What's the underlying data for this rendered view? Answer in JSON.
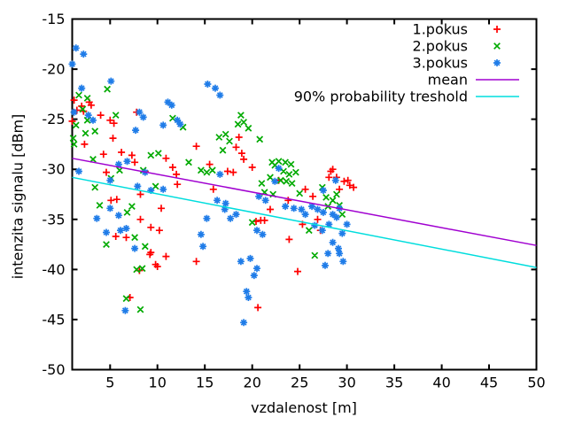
{
  "chart_data": {
    "type": "scatter",
    "title": "",
    "xlabel": "vzdalenost [m]",
    "ylabel": "intenzita signalu [dBm]",
    "xlim": [
      1,
      50
    ],
    "ylim": [
      -50,
      -15
    ],
    "x_ticks": [
      5,
      10,
      15,
      20,
      25,
      30,
      35,
      40,
      45,
      50
    ],
    "y_ticks": [
      -50,
      -45,
      -40,
      -35,
      -30,
      -25,
      -20,
      -15
    ],
    "grid": false,
    "legend_position": "top-right-inside",
    "background": "#ffffff",
    "border_color": "#000000",
    "series": [
      {
        "name": "1.pokus",
        "kind": "points",
        "marker": "plus",
        "color": "#ff0000",
        "points": [
          [
            1.0,
            -25.2
          ],
          [
            1.2,
            -23.1
          ],
          [
            1.5,
            -24.1
          ],
          [
            2.0,
            -23.7
          ],
          [
            2.2,
            -24.2
          ],
          [
            2.8,
            -23.3
          ],
          [
            3.0,
            -23.6
          ],
          [
            4.0,
            -24.6
          ],
          [
            5.0,
            -25.1
          ],
          [
            5.4,
            -25.4
          ],
          [
            7.8,
            -24.3
          ],
          [
            2.3,
            -27.5
          ],
          [
            4.3,
            -28.5
          ],
          [
            5.3,
            -26.9
          ],
          [
            6.2,
            -28.3
          ],
          [
            7.3,
            -28.6
          ],
          [
            7.6,
            -29.3
          ],
          [
            8.7,
            -30.2
          ],
          [
            10.9,
            -28.9
          ],
          [
            11.6,
            -29.8
          ],
          [
            12.0,
            -30.5
          ],
          [
            12.1,
            -31.5
          ],
          [
            14.1,
            -27.7
          ],
          [
            15.5,
            -29.5
          ],
          [
            15.9,
            -32.0
          ],
          [
            4.6,
            -30.3
          ],
          [
            5.1,
            -33.1
          ],
          [
            5.7,
            -33.0
          ],
          [
            8.2,
            -32.5
          ],
          [
            10.4,
            -33.9
          ],
          [
            8.2,
            -35.0
          ],
          [
            9.3,
            -35.8
          ],
          [
            10.2,
            -36.1
          ],
          [
            5.6,
            -36.7
          ],
          [
            6.7,
            -36.8
          ],
          [
            9.3,
            -38.3
          ],
          [
            17.4,
            -30.2
          ],
          [
            18.0,
            -30.3
          ],
          [
            18.3,
            -27.8
          ],
          [
            18.6,
            -26.8
          ],
          [
            18.9,
            -28.4
          ],
          [
            19.1,
            -29.0
          ],
          [
            20.0,
            -29.8
          ],
          [
            20.4,
            -35.2
          ],
          [
            20.9,
            -35.1
          ],
          [
            21.3,
            -35.1
          ],
          [
            21.9,
            -34.0
          ],
          [
            22.8,
            -31.1
          ],
          [
            23.8,
            -33.1
          ],
          [
            23.9,
            -37.0
          ],
          [
            24.8,
            -40.2
          ],
          [
            25.3,
            -35.5
          ],
          [
            25.6,
            -32.0
          ],
          [
            26.4,
            -32.7
          ],
          [
            26.9,
            -35.0
          ],
          [
            27.2,
            -36.1
          ],
          [
            28.1,
            -30.8
          ],
          [
            28.3,
            -30.2
          ],
          [
            28.5,
            -30.0
          ],
          [
            28.9,
            -30.8
          ],
          [
            29.2,
            -32.0
          ],
          [
            29.7,
            -31.2
          ],
          [
            30.1,
            -31.1
          ],
          [
            30.3,
            -31.6
          ],
          [
            30.7,
            -31.8
          ],
          [
            9.2,
            -38.5
          ],
          [
            10.9,
            -38.7
          ],
          [
            9.8,
            -39.5
          ],
          [
            10.0,
            -39.7
          ],
          [
            14.1,
            -39.2
          ],
          [
            8.1,
            -40.1
          ],
          [
            7.1,
            -42.8
          ],
          [
            20.6,
            -43.8
          ]
        ]
      },
      {
        "name": "2.pokus",
        "kind": "points",
        "marker": "cross",
        "color": "#00aa00",
        "points": [
          [
            1.1,
            -26.9
          ],
          [
            1.2,
            -27.5
          ],
          [
            1.4,
            -25.6
          ],
          [
            1.7,
            -22.6
          ],
          [
            2.1,
            -24.0
          ],
          [
            2.4,
            -26.4
          ],
          [
            2.6,
            -22.9
          ],
          [
            2.6,
            -25.1
          ],
          [
            3.2,
            -29.0
          ],
          [
            3.4,
            -26.2
          ],
          [
            4.7,
            -22.0
          ],
          [
            5.6,
            -24.6
          ],
          [
            3.4,
            -31.8
          ],
          [
            3.9,
            -33.6
          ],
          [
            5.1,
            -30.9
          ],
          [
            6.0,
            -30.1
          ],
          [
            6.8,
            -34.3
          ],
          [
            7.3,
            -33.7
          ],
          [
            8.5,
            -30.1
          ],
          [
            9.3,
            -28.6
          ],
          [
            9.8,
            -31.7
          ],
          [
            10.1,
            -28.4
          ],
          [
            11.6,
            -24.9
          ],
          [
            12.7,
            -25.8
          ],
          [
            13.3,
            -29.3
          ],
          [
            14.6,
            -30.1
          ],
          [
            15.2,
            -30.3
          ],
          [
            15.8,
            -30.1
          ],
          [
            4.6,
            -37.5
          ],
          [
            7.6,
            -36.8
          ],
          [
            8.7,
            -37.7
          ],
          [
            16.5,
            -26.8
          ],
          [
            16.9,
            -28.1
          ],
          [
            17.2,
            -26.5
          ],
          [
            17.6,
            -27.2
          ],
          [
            18.5,
            -25.5
          ],
          [
            18.8,
            -24.6
          ],
          [
            19.1,
            -25.3
          ],
          [
            19.6,
            -25.9
          ],
          [
            20.0,
            -35.3
          ],
          [
            20.8,
            -27.0
          ],
          [
            21.0,
            -31.4
          ],
          [
            21.3,
            -32.3
          ],
          [
            21.9,
            -30.8
          ],
          [
            22.1,
            -29.3
          ],
          [
            22.2,
            -32.5
          ],
          [
            22.4,
            -29.6
          ],
          [
            22.8,
            -29.2
          ],
          [
            23.0,
            -31.1
          ],
          [
            23.3,
            -30.2
          ],
          [
            23.5,
            -29.3
          ],
          [
            23.6,
            -31.2
          ],
          [
            23.9,
            -30.5
          ],
          [
            24.1,
            -29.5
          ],
          [
            24.2,
            -31.4
          ],
          [
            24.6,
            -30.3
          ],
          [
            25.0,
            -32.4
          ],
          [
            26.0,
            -36.1
          ],
          [
            27.4,
            -31.8
          ],
          [
            27.8,
            -32.8
          ],
          [
            28.0,
            -33.7
          ],
          [
            28.5,
            -33.1
          ],
          [
            28.9,
            -32.5
          ],
          [
            29.2,
            -33.6
          ],
          [
            29.5,
            -34.5
          ],
          [
            7.8,
            -40.0
          ],
          [
            8.4,
            -39.9
          ],
          [
            6.7,
            -42.9
          ],
          [
            8.2,
            -44.0
          ],
          [
            26.6,
            -38.6
          ]
        ]
      },
      {
        "name": "3.pokus",
        "kind": "points",
        "marker": "star",
        "color": "#1f7ce8",
        "points": [
          [
            1.4,
            -17.9
          ],
          [
            2.2,
            -18.5
          ],
          [
            1.0,
            -19.5
          ],
          [
            2.0,
            -21.9
          ],
          [
            5.1,
            -21.2
          ],
          [
            1.2,
            -24.3
          ],
          [
            2.7,
            -24.6
          ],
          [
            3.2,
            -25.1
          ],
          [
            7.7,
            -26.1
          ],
          [
            8.1,
            -24.3
          ],
          [
            8.5,
            -24.8
          ],
          [
            10.6,
            -25.6
          ],
          [
            11.1,
            -23.3
          ],
          [
            11.5,
            -23.6
          ],
          [
            12.1,
            -25.1
          ],
          [
            12.4,
            -25.5
          ],
          [
            15.3,
            -21.5
          ],
          [
            16.1,
            -21.9
          ],
          [
            16.6,
            -22.6
          ],
          [
            1.7,
            -30.2
          ],
          [
            3.6,
            -34.9
          ],
          [
            5.0,
            -31.1
          ],
          [
            5.0,
            -33.9
          ],
          [
            5.9,
            -29.5
          ],
          [
            5.9,
            -34.6
          ],
          [
            6.1,
            -36.1
          ],
          [
            4.6,
            -36.3
          ],
          [
            6.7,
            -35.9
          ],
          [
            6.8,
            -29.2
          ],
          [
            7.9,
            -31.7
          ],
          [
            8.7,
            -30.3
          ],
          [
            9.3,
            -32.1
          ],
          [
            10.6,
            -32.0
          ],
          [
            14.6,
            -36.5
          ],
          [
            15.2,
            -34.9
          ],
          [
            14.8,
            -37.7
          ],
          [
            7.6,
            -37.9
          ],
          [
            16.3,
            -33.1
          ],
          [
            16.6,
            -30.5
          ],
          [
            17.1,
            -34.0
          ],
          [
            17.2,
            -33.4
          ],
          [
            17.7,
            -34.9
          ],
          [
            18.3,
            -34.5
          ],
          [
            20.5,
            -36.1
          ],
          [
            20.7,
            -32.7
          ],
          [
            21.1,
            -36.5
          ],
          [
            21.4,
            -33.1
          ],
          [
            22.4,
            -31.2
          ],
          [
            22.8,
            -29.9
          ],
          [
            23.5,
            -33.7
          ],
          [
            24.4,
            -33.9
          ],
          [
            25.2,
            -34.0
          ],
          [
            25.6,
            -34.5
          ],
          [
            26.3,
            -33.7
          ],
          [
            26.6,
            -35.6
          ],
          [
            26.9,
            -34.0
          ],
          [
            27.4,
            -36.1
          ],
          [
            27.5,
            -32.1
          ],
          [
            27.5,
            -34.3
          ],
          [
            28.1,
            -35.5
          ],
          [
            28.5,
            -34.5
          ],
          [
            28.8,
            -31.1
          ],
          [
            28.9,
            -34.8
          ],
          [
            29.2,
            -33.9
          ],
          [
            29.5,
            -36.4
          ],
          [
            30.0,
            -35.5
          ],
          [
            28.5,
            -37.3
          ],
          [
            29.1,
            -37.9
          ],
          [
            6.6,
            -44.1
          ],
          [
            18.8,
            -39.2
          ],
          [
            19.8,
            -38.9
          ],
          [
            20.5,
            -39.9
          ],
          [
            20.2,
            -40.6
          ],
          [
            19.4,
            -42.2
          ],
          [
            19.6,
            -42.8
          ],
          [
            19.1,
            -45.3
          ],
          [
            27.7,
            -39.6
          ],
          [
            29.6,
            -39.2
          ],
          [
            28.0,
            -38.4
          ],
          [
            29.2,
            -38.4
          ]
        ]
      },
      {
        "name": "mean",
        "kind": "line",
        "color": "#a000d0",
        "points": [
          [
            1,
            -28.9
          ],
          [
            50,
            -37.6
          ]
        ]
      },
      {
        "name": "90% probability treshold",
        "kind": "line",
        "color": "#00dddd",
        "points": [
          [
            1,
            -30.8
          ],
          [
            50,
            -39.8
          ]
        ]
      }
    ]
  }
}
